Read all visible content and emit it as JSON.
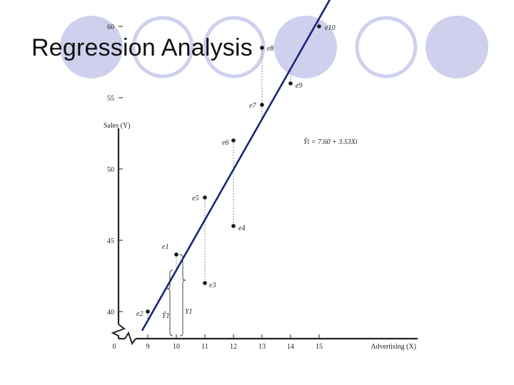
{
  "slide": {
    "title": "Regression Analysis",
    "decor_circles": 6,
    "circle_fill_color": "#cfd0ee",
    "circle_ring_color": "#cfd0ee"
  },
  "chart_data": {
    "type": "scatter",
    "xlabel": "Advertising (X)",
    "ylabel": "Sales (Y)",
    "x_ticks": [
      "0",
      "9",
      "10",
      "11",
      "12",
      "13",
      "14",
      "15"
    ],
    "y_ticks": [
      "40",
      "45",
      "50",
      "55",
      "60"
    ],
    "xlim": [
      8.4,
      16
    ],
    "ylim": [
      38,
      66
    ],
    "axis_breaks": true,
    "grid": false,
    "regression": {
      "label": "Ŷi = 7.60 + 3.53Xi",
      "intercept": 7.6,
      "slope": 3.53,
      "x_range": [
        8.8,
        15.55
      ],
      "color": "#1a237e"
    },
    "points": [
      {
        "x": 9,
        "y": 40,
        "label": "e2"
      },
      {
        "x": 10,
        "y": 44,
        "label": "e1"
      },
      {
        "x": 11,
        "y": 48,
        "label": "e5"
      },
      {
        "x": 11,
        "y": 42,
        "label": "e3"
      },
      {
        "x": 12,
        "y": 52,
        "label": "e6"
      },
      {
        "x": 12,
        "y": 46,
        "label": "e4"
      },
      {
        "x": 13,
        "y": 58.5,
        "label": "e8"
      },
      {
        "x": 13,
        "y": 54.5,
        "label": "e7"
      },
      {
        "x": 14,
        "y": 56,
        "label": "e9"
      },
      {
        "x": 15,
        "y": 60,
        "label": "e10"
      }
    ],
    "annotations": {
      "y1_label": "Y1",
      "yhat1_label": "Ŷ1"
    }
  }
}
